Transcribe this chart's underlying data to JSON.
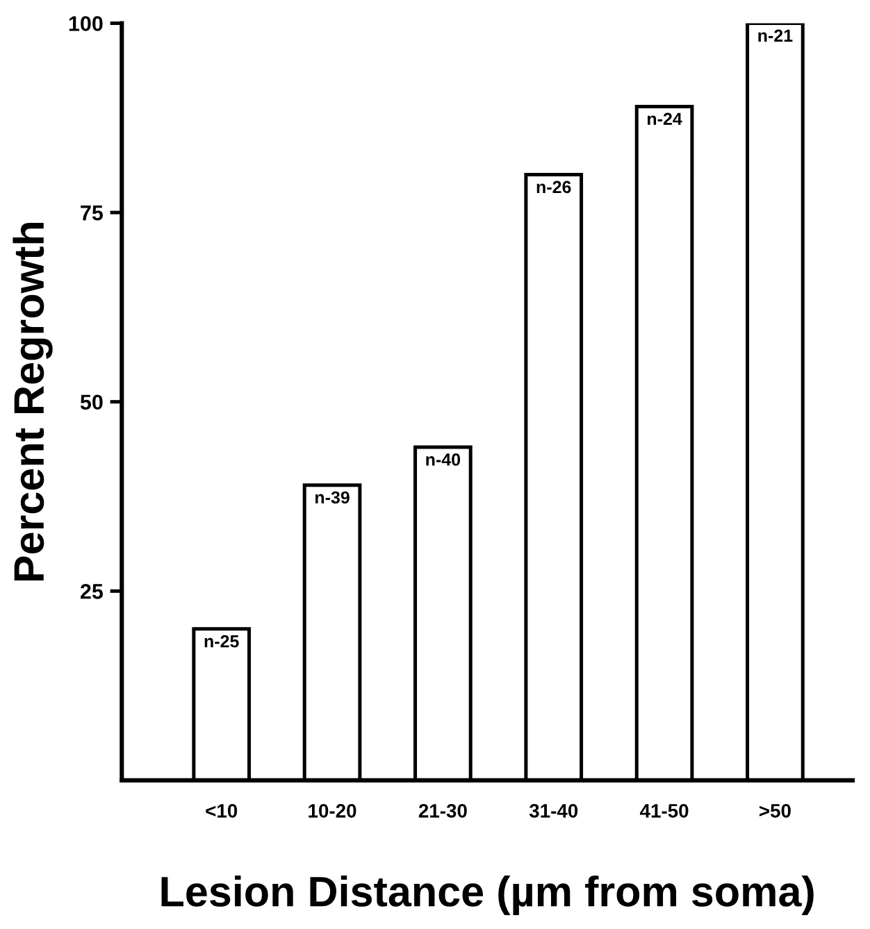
{
  "chart_data": {
    "type": "bar",
    "xlabel": "Lesion Distance (µm from soma)",
    "ylabel": "Percent Regrowth",
    "categories": [
      "<10",
      "10-20",
      "21-30",
      "31-40",
      "41-50",
      ">50"
    ],
    "values": [
      20,
      39,
      44,
      80,
      89,
      100
    ],
    "color": "#ffffff",
    "ylim": [
      0,
      100
    ],
    "yticks": [
      25,
      50,
      75,
      100
    ],
    "grid": false,
    "annotations": [
      {
        "text": "n-25",
        "x": "<10",
        "y": 20
      },
      {
        "text": "n-39",
        "x": "10-20",
        "y": 39
      },
      {
        "text": "n-40",
        "x": "21-30",
        "y": 44
      },
      {
        "text": "n-26",
        "x": "31-40",
        "y": 80
      },
      {
        "text": "n-24",
        "x": "41-50",
        "y": 89
      },
      {
        "text": "n-21",
        "x": ">50",
        "y": 100
      }
    ]
  }
}
